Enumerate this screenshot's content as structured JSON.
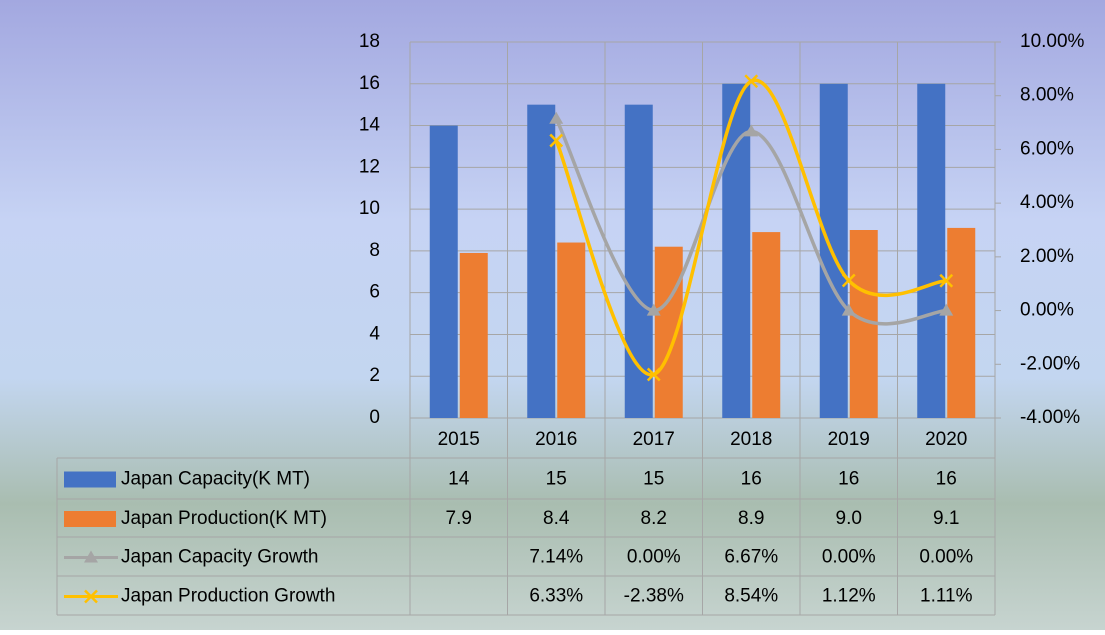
{
  "chart_data": {
    "type": "bar",
    "categories": [
      "2015",
      "2016",
      "2017",
      "2018",
      "2019",
      "2020"
    ],
    "series": [
      {
        "name": "Japan Capacity(K MT)",
        "color": "#4472c4",
        "type": "bar",
        "values": [
          14,
          15,
          15,
          16,
          16,
          16
        ],
        "value_labels": [
          "14",
          "15",
          "15",
          "16",
          "16",
          "16"
        ]
      },
      {
        "name": "Japan Production(K MT)",
        "color": "#ed7d31",
        "type": "bar",
        "values": [
          7.9,
          8.4,
          8.2,
          8.9,
          9.0,
          9.1
        ],
        "value_labels": [
          "7.9",
          "8.4",
          "8.2",
          "8.9",
          "9.0",
          "9.1"
        ]
      },
      {
        "name": "Japan Capacity Growth",
        "color": "#a5a5a5",
        "type": "line",
        "marker": "triangle",
        "axis": "y2",
        "values": [
          null,
          7.14,
          0.0,
          6.67,
          0.0,
          0.0
        ],
        "value_labels": [
          null,
          "7.14%",
          "0.00%",
          "6.67%",
          "0.00%",
          "0.00%"
        ]
      },
      {
        "name": "Japan Production Growth",
        "color": "#ffc000",
        "type": "line",
        "marker": "x",
        "axis": "y2",
        "values": [
          null,
          6.33,
          -2.38,
          8.54,
          1.12,
          1.11
        ],
        "value_labels": [
          null,
          "6.33%",
          "-2.38%",
          "8.54%",
          "1.12%",
          "1.11%"
        ]
      }
    ],
    "ylim": [
      0,
      18
    ],
    "yticks": [
      0,
      2,
      4,
      6,
      8,
      10,
      12,
      14,
      16,
      18
    ],
    "y2lim": [
      -4,
      10
    ],
    "y2ticks": [
      {
        "value": -4,
        "label": "-4.00%"
      },
      {
        "value": -2,
        "label": "-2.00%"
      },
      {
        "value": 0,
        "label": "0.00%"
      },
      {
        "value": 2,
        "label": "2.00%"
      },
      {
        "value": 4,
        "label": "4.00%"
      },
      {
        "value": 6,
        "label": "6.00%"
      },
      {
        "value": 8,
        "label": "8.00%"
      },
      {
        "value": 10,
        "label": "10.00%"
      }
    ],
    "grid": true,
    "data_table": true
  }
}
